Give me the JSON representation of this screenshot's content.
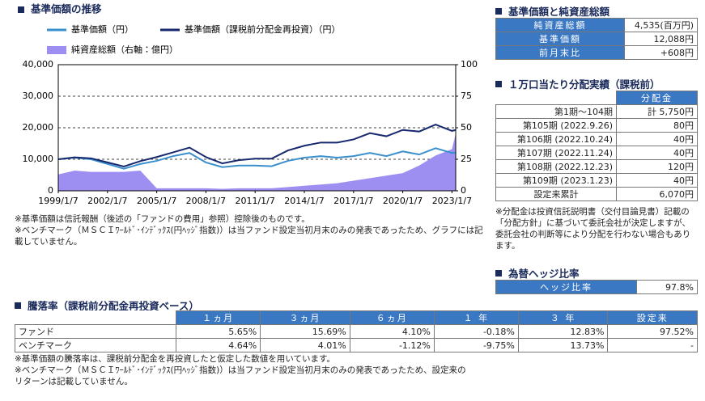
{
  "chart_data": {
    "type": "line",
    "title": "基準価額の推移",
    "x": [
      "1999/1/7",
      "2000/1/7",
      "2001/1/7",
      "2002/1/7",
      "2003/1/7",
      "2004/1/7",
      "2005/1/7",
      "2006/1/7",
      "2007/1/7",
      "2008/1/7",
      "2009/1/7",
      "2010/1/7",
      "2011/1/7",
      "2012/1/7",
      "2013/1/7",
      "2014/1/7",
      "2015/1/7",
      "2016/1/7",
      "2017/1/7",
      "2018/1/7",
      "2019/1/7",
      "2020/1/7",
      "2021/1/7",
      "2022/1/7",
      "2023/1/7",
      "2023/3/31"
    ],
    "series": [
      {
        "name": "純資産総額（右軸：億円）",
        "color": "#9d8ff2",
        "kind": "area",
        "axis": "y2",
        "values": [
          13,
          16,
          15,
          15,
          15,
          16,
          2,
          2,
          2,
          2,
          1.5,
          2,
          2,
          2,
          3,
          4,
          5,
          6,
          8,
          10,
          12,
          14,
          20,
          28,
          33,
          45.35
        ]
      },
      {
        "name": "基準価額（円）",
        "color": "#3a8fcd",
        "kind": "line",
        "values": [
          10000,
          10500,
          10000,
          8500,
          7000,
          8500,
          9500,
          11000,
          12000,
          9000,
          7500,
          8000,
          8000,
          7800,
          9500,
          10500,
          11000,
          10500,
          11000,
          12000,
          11000,
          12500,
          11500,
          13500,
          12000,
          12088
        ]
      },
      {
        "name": "基準価額（課税前分配金再投資）（円）",
        "color": "#16286e",
        "kind": "line",
        "values": [
          10000,
          10600,
          10300,
          9000,
          7700,
          9400,
          10700,
          12200,
          13700,
          10700,
          8700,
          9700,
          10200,
          10200,
          12800,
          14300,
          15300,
          15300,
          16300,
          18300,
          17300,
          19300,
          18800,
          21000,
          19000,
          19300
        ]
      }
    ],
    "xlim": [
      "1999/1/7",
      "2023/3/31"
    ],
    "xticks": [
      "1999/1/7",
      "2002/1/7",
      "2005/1/7",
      "2008/1/7",
      "2011/1/7",
      "2014/1/7",
      "2017/1/7",
      "2020/1/7",
      "2023/1/7"
    ],
    "ylim": [
      0,
      40000
    ],
    "yticks": [
      0,
      {
        "value": 10000,
        "label": "10,000"
      },
      {
        "value": 20000,
        "label": "20,000"
      },
      {
        "value": 30000,
        "label": "30,000"
      },
      {
        "value": 40000,
        "label": "40,000"
      }
    ],
    "y2lim": [
      0,
      100
    ],
    "y2ticks": [
      0,
      25,
      50,
      75,
      100
    ],
    "grid": true
  },
  "chart_notes": [
    "※基準価額は信託報酬（後述の「ファンドの費用」参照）控除後のものです。",
    "※ベンチマーク（ＭＳＣＩﾜｰﾙﾄﾞ･ｲﾝﾃﾞｯｸｽ(円ﾍｯｼﾞ指数)）は当ファンド設定当初月末のみの発表であったため、グラフには記載していません。"
  ],
  "nav_summary": {
    "title": "基準価額と純資産総額",
    "rows": [
      [
        "純資産総額",
        "4,535(百万円)"
      ],
      [
        "基準価額",
        "12,088円"
      ],
      [
        "前月末比",
        "+608円"
      ]
    ]
  },
  "distribution": {
    "title": "１万口当たり分配実績（課税前）",
    "header": "分配金",
    "rows": [
      [
        "第1期～104期",
        "計 5,750円"
      ],
      [
        "第105期 (2022.9.26)",
        "80円"
      ],
      [
        "第106期 (2022.10.24)",
        "40円"
      ],
      [
        "第107期 (2022.11.24)",
        "40円"
      ],
      [
        "第108期 (2022.12.23)",
        "120円"
      ],
      [
        "第109期 (2023.1.23)",
        "40円"
      ],
      [
        "設定来累計",
        "6,070円"
      ]
    ],
    "note": "※分配金は投資信託説明書（交付目論見書）記載の「分配方針」に基づいて委託会社が決定しますが、委託会社の判断等により分配を行わない場合もあります。"
  },
  "hedge": {
    "title": "為替ヘッジ比率",
    "rows": [
      [
        "ヘッジ比率",
        "97.8%"
      ]
    ]
  },
  "returns": {
    "title": "騰落率（課税前分配金再投資ベース）",
    "columns": [
      "１ヵ月",
      "３ヵ月",
      "６ヵ月",
      "１ 年",
      "３ 年",
      "設定来"
    ],
    "rows": [
      [
        "ファンド",
        "5.65%",
        "15.69%",
        "4.10%",
        "-0.18%",
        "12.83%",
        "97.52%"
      ],
      [
        "ベンチマーク",
        "4.64%",
        "4.01%",
        "-1.12%",
        "-9.75%",
        "13.73%",
        "-"
      ]
    ],
    "notes": [
      "※基準価額の騰落率は、課税前分配金を再投資したと仮定した数値を用いています。",
      "※ベンチマーク（ＭＳＣＩﾜｰﾙﾄﾞ･ｲﾝﾃﾞｯｸｽ(円ﾍｯｼﾞ指数)）は当ファンド設定当初月末のみの発表であったため、設定来のリターンは記載していません。"
    ]
  }
}
